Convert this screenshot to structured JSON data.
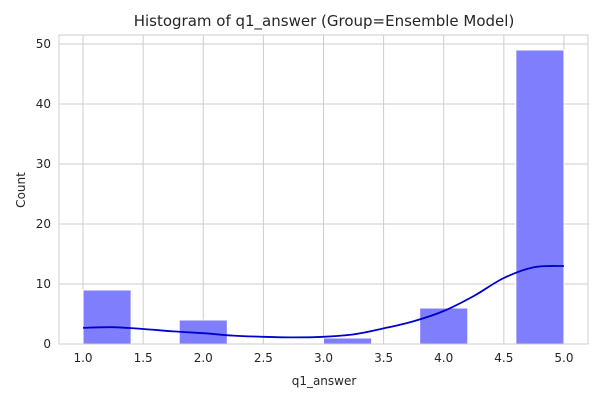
{
  "chart_data": {
    "type": "bar",
    "title": "Histogram of q1_answer (Group=Ensemble Model)",
    "xlabel": "q1_answer",
    "ylabel": "Count",
    "xlim": [
      0.8,
      5.2
    ],
    "ylim": [
      0,
      51.5
    ],
    "x_ticks": [
      1.0,
      1.5,
      2.0,
      2.5,
      3.0,
      3.5,
      4.0,
      4.5,
      5.0
    ],
    "x_tick_labels": [
      "1.0",
      "1.5",
      "2.0",
      "2.5",
      "3.0",
      "3.5",
      "4.0",
      "4.5",
      "5.0"
    ],
    "y_ticks": [
      0,
      10,
      20,
      30,
      40,
      50
    ],
    "y_tick_labels": [
      "0",
      "10",
      "20",
      "30",
      "40",
      "50"
    ],
    "grid": true,
    "bins": [
      {
        "x0": 1.0,
        "x1": 1.4,
        "count": 9
      },
      {
        "x0": 1.4,
        "x1": 1.8,
        "count": 0
      },
      {
        "x0": 1.8,
        "x1": 2.2,
        "count": 4
      },
      {
        "x0": 2.2,
        "x1": 2.6,
        "count": 0
      },
      {
        "x0": 2.6,
        "x1": 3.0,
        "count": 0
      },
      {
        "x0": 3.0,
        "x1": 3.4,
        "count": 1
      },
      {
        "x0": 3.4,
        "x1": 3.8,
        "count": 0
      },
      {
        "x0": 3.8,
        "x1": 4.2,
        "count": 6
      },
      {
        "x0": 4.2,
        "x1": 4.6,
        "count": 0
      },
      {
        "x0": 4.6,
        "x1": 5.0,
        "count": 49
      }
    ],
    "kde": {
      "x": [
        1.0,
        1.25,
        1.5,
        1.75,
        2.0,
        2.25,
        2.5,
        2.75,
        3.0,
        3.25,
        3.5,
        3.75,
        4.0,
        4.25,
        4.5,
        4.75,
        5.0
      ],
      "y": [
        2.7,
        2.8,
        2.5,
        2.1,
        1.8,
        1.4,
        1.2,
        1.1,
        1.2,
        1.6,
        2.6,
        3.8,
        5.5,
        8.0,
        11.0,
        12.8,
        13.0
      ]
    },
    "colors": {
      "bar": "#7f7ffd",
      "kde": "#0000cc",
      "grid": "#cccccc"
    }
  }
}
